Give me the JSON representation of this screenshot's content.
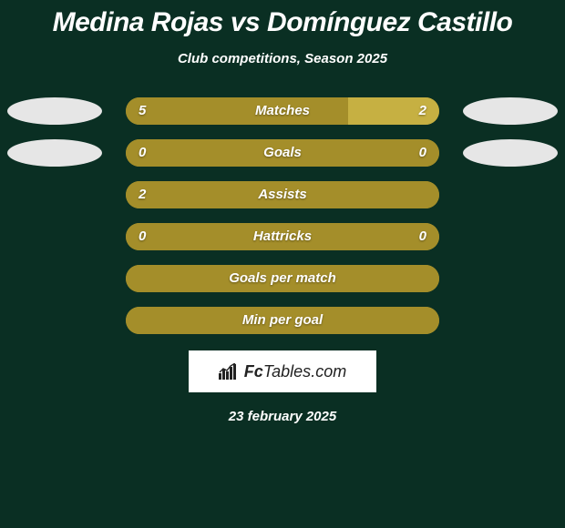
{
  "title": "Medina Rojas vs Domínguez Castillo",
  "subtitle": "Club competitions, Season 2025",
  "date": "23 february 2025",
  "colors": {
    "background": "#0a2f23",
    "player1_bar": "#a48e2a",
    "player2_bar": "#c6b042",
    "neutral_bar": "#a48e2a",
    "badge": "#e6e6e6",
    "text": "#ffffff"
  },
  "logo": {
    "text_prefix": "Fc",
    "text_main": "Tables",
    "text_suffix": ".com"
  },
  "rows": [
    {
      "metric": "Matches",
      "left": "5",
      "right": "2",
      "left_pct": 71,
      "right_pct": 29,
      "show_badges": true
    },
    {
      "metric": "Goals",
      "left": "0",
      "right": "0",
      "left_pct": 100,
      "right_pct": 0,
      "show_badges": true
    },
    {
      "metric": "Assists",
      "left": "2",
      "right": "",
      "left_pct": 100,
      "right_pct": 0,
      "show_badges": false
    },
    {
      "metric": "Hattricks",
      "left": "0",
      "right": "0",
      "left_pct": 100,
      "right_pct": 0,
      "show_badges": false
    },
    {
      "metric": "Goals per match",
      "left": "",
      "right": "",
      "left_pct": 100,
      "right_pct": 0,
      "show_badges": false
    },
    {
      "metric": "Min per goal",
      "left": "",
      "right": "",
      "left_pct": 100,
      "right_pct": 0,
      "show_badges": false
    }
  ]
}
